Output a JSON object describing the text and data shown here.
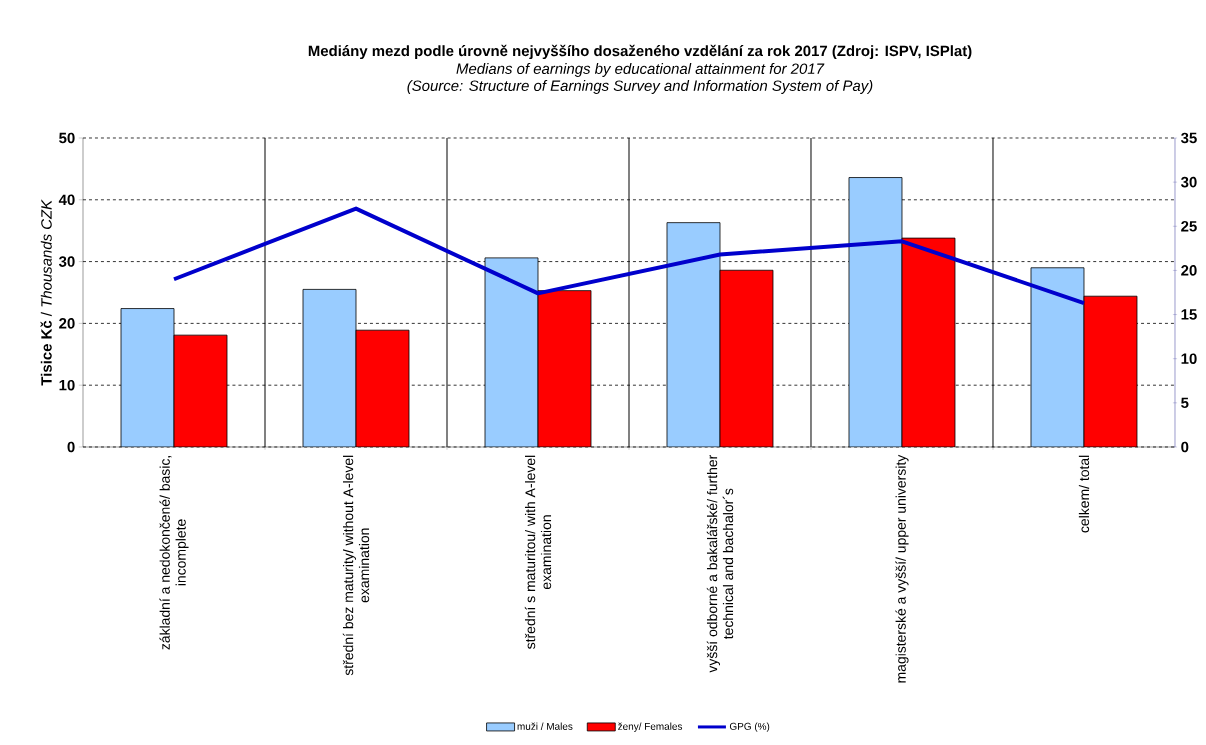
{
  "chart_data": {
    "type": "bar",
    "title": "Mediány mezd podle úrovně nejvyššího dosaženého vzdělání za rok 2017 (Zdroj: ISPV, ISPlat)",
    "subtitle": "Medians of earnings by educational attainment for 2017",
    "annotations": [
      "(Source: Structure of Earnings Survey and Information System of Pay)"
    ],
    "ylabel": "**Tisice Kč** / *Thousands CZK*",
    "categories": [
      "základní a nedokončené/ basic, incomplete",
      "střední bez maturity/ without A-level examination",
      "střední s maturitou/ with A-level examination",
      "vyšší odborné a bakalářské/ further technical and bachalor´s",
      "magisterské a vyšší/ upper university",
      "celkem/ total"
    ],
    "series": [
      {
        "name": "muži / Males",
        "color": "#99ccff",
        "values": [
          22.4,
          25.5,
          30.6,
          36.3,
          43.6,
          29.0
        ]
      },
      {
        "name": "ženy/ Females",
        "color": "#ff0000",
        "values": [
          18.1,
          18.9,
          25.3,
          28.6,
          33.8,
          24.4
        ]
      },
      {
        "name": "GPG (%)",
        "type": "line",
        "axis": "y2",
        "color": "#0000cc",
        "values": [
          19.0,
          27.0,
          17.4,
          21.8,
          23.3,
          16.3
        ]
      }
    ],
    "ylim": [
      0,
      50
    ],
    "yticks": [
      0,
      10,
      20,
      30,
      40,
      50
    ],
    "y2lim": [
      0,
      35
    ],
    "y2ticks": [
      0,
      5,
      10,
      15,
      20,
      25,
      30,
      35
    ],
    "grid": true,
    "legend": "bottom",
    "marker": "none"
  }
}
